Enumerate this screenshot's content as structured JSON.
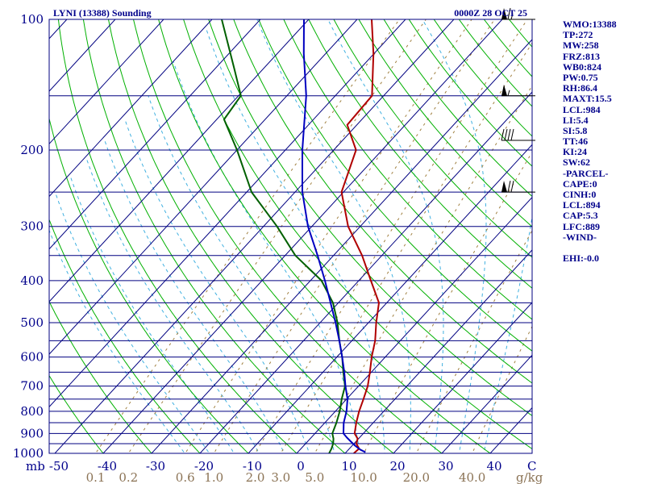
{
  "chart_data": {
    "type": "line",
    "title": "LYNI (13388) Sounding",
    "time": "0000Z 28 OCT 25",
    "pressure_unit": "mb",
    "temperature_unit": "C",
    "mixing_ratio_unit": "g/kg",
    "pressure_range": [
      1000,
      100
    ],
    "temperature_range": [
      -50,
      50
    ],
    "pressure_ticks": [
      100,
      200,
      300,
      400,
      500,
      600,
      700,
      800,
      900,
      1000
    ],
    "isobars": [
      100,
      150,
      200,
      250,
      300,
      350,
      400,
      450,
      500,
      550,
      600,
      650,
      700,
      750,
      800,
      850,
      900,
      950,
      1000
    ],
    "temperature_ticks": [
      -50,
      -40,
      -30,
      -20,
      -10,
      0,
      10,
      20,
      30,
      40
    ],
    "temperature_tick_labels": [
      "-50",
      "-40",
      "-30",
      "-20",
      "-10",
      "0",
      "10",
      "20",
      "30",
      "40"
    ],
    "mixing_ratio_labels": [
      "0.1",
      "0.2",
      "0.6",
      "1.0",
      "2.0",
      "3.0",
      "5.0",
      "10.0",
      "20.0",
      "40.0"
    ],
    "mixing_ratio_values": [
      0.1,
      0.2,
      0.6,
      1.0,
      2.0,
      3.0,
      5.0,
      10.0,
      20.0,
      40.0
    ],
    "series": [
      {
        "name": "Temperature",
        "color": "#b00000",
        "points": [
          [
            1000,
            11.8
          ],
          [
            975,
            12.0
          ],
          [
            950,
            10.5
          ],
          [
            925,
            9.8
          ],
          [
            900,
            8.2
          ],
          [
            850,
            6.5
          ],
          [
            800,
            4.9
          ],
          [
            750,
            3.5
          ],
          [
            700,
            1.9
          ],
          [
            650,
            -0.3
          ],
          [
            600,
            -2.8
          ],
          [
            550,
            -5.2
          ],
          [
            500,
            -8.4
          ],
          [
            450,
            -11.6
          ],
          [
            400,
            -17.5
          ],
          [
            350,
            -24.1
          ],
          [
            300,
            -32.5
          ],
          [
            250,
            -40.4
          ],
          [
            200,
            -45.4
          ],
          [
            175,
            -52.0
          ],
          [
            150,
            -52.4
          ],
          [
            120,
            -60.1
          ],
          [
            100,
            -67.0
          ]
        ]
      },
      {
        "name": "Dewpoint",
        "color": "#006000",
        "points": [
          [
            1000,
            6.7
          ],
          [
            975,
            6.3
          ],
          [
            950,
            5.7
          ],
          [
            925,
            4.8
          ],
          [
            900,
            3.6
          ],
          [
            850,
            2.4
          ],
          [
            800,
            0.9
          ],
          [
            750,
            -1.0
          ],
          [
            700,
            -2.8
          ],
          [
            650,
            -5.8
          ],
          [
            600,
            -8.9
          ],
          [
            550,
            -12.6
          ],
          [
            500,
            -16.4
          ],
          [
            450,
            -21.1
          ],
          [
            400,
            -27.7
          ],
          [
            350,
            -37.9
          ],
          [
            300,
            -47.2
          ],
          [
            250,
            -59.0
          ],
          [
            200,
            -70.0
          ],
          [
            170,
            -78.5
          ],
          [
            150,
            -79.5
          ],
          [
            130,
            -86.0
          ],
          [
            100,
            -98.0
          ]
        ]
      },
      {
        "name": "Parcel",
        "color": "#0000c0",
        "points": [
          [
            994,
            14.0
          ],
          [
            980,
            12.4
          ],
          [
            960,
            10.6
          ],
          [
            940,
            9.0
          ],
          [
            920,
            7.4
          ],
          [
            900,
            5.9
          ],
          [
            850,
            3.9
          ],
          [
            800,
            2.3
          ],
          [
            750,
            0.2
          ],
          [
            700,
            -2.7
          ],
          [
            650,
            -5.6
          ],
          [
            600,
            -8.9
          ],
          [
            550,
            -12.6
          ],
          [
            500,
            -16.8
          ],
          [
            450,
            -21.6
          ],
          [
            400,
            -27.0
          ],
          [
            350,
            -33.3
          ],
          [
            300,
            -40.8
          ],
          [
            250,
            -48.5
          ],
          [
            200,
            -56.5
          ],
          [
            150,
            -66.0
          ],
          [
            120,
            -74.5
          ],
          [
            100,
            -81.0
          ]
        ]
      }
    ],
    "wind_barbs": [
      {
        "pressure": 100,
        "direction": 270,
        "speed_kt": 65
      },
      {
        "pressure": 150,
        "direction": 270,
        "speed_kt": 55
      },
      {
        "pressure": 190,
        "direction": 270,
        "speed_kt": 40
      },
      {
        "pressure": 250,
        "direction": 270,
        "speed_kt": 70
      }
    ],
    "stats": [
      "WMO:13388",
      "TP:272",
      "MW:258",
      "FRZ:813",
      "WB0:824",
      "PW:0.75",
      "RH:86.4",
      "MAXT:15.5",
      "LCL:984",
      "LI:5.4",
      "SI:5.8",
      "TT:46",
      "KI:24",
      "SW:62",
      "-PARCEL-",
      "CAPE:0",
      "CINH:0",
      "LCL:894",
      "CAP:5.3",
      "LFC:889",
      "-WIND-",
      "",
      "EHI:-0.0"
    ]
  },
  "colors": {
    "isobar": "#000080",
    "isotherm": "#000080",
    "dry_adiabat": "#00b000",
    "moist_adiabat": "#40b0e0",
    "mixing_ratio": "#a08040",
    "axis_text": "#00008b",
    "mixing_ratio_text": "#8b7355"
  }
}
